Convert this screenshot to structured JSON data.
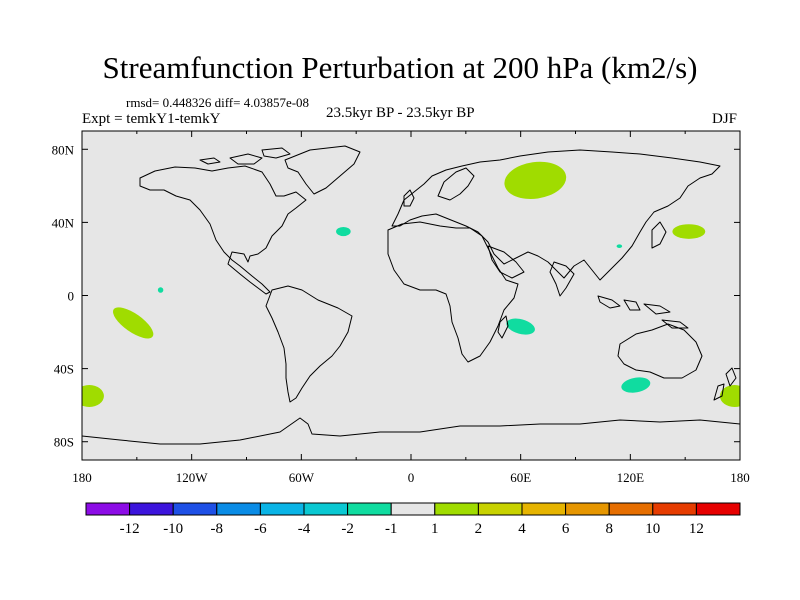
{
  "title": "Streamfunction Perturbation at 200 hPa (km2/s)",
  "stats": "rmsd= 0.448326 diff= 4.03857e-08",
  "left_label": "Expt = temkY1-temkY",
  "center_label": "23.5kyr BP - 23.5kyr BP",
  "right_label": "DJF",
  "colors": {
    "ocean": "#e6e6e6",
    "coast": "#000000",
    "pos_low": "#a0dc00",
    "neg_low": "#10dca0"
  },
  "map": {
    "lon_ticks": [
      {
        "lon": -180,
        "label": "180"
      },
      {
        "lon": -120,
        "label": "120W"
      },
      {
        "lon": -60,
        "label": "60W"
      },
      {
        "lon": 0,
        "label": "0"
      },
      {
        "lon": 60,
        "label": "60E"
      },
      {
        "lon": 120,
        "label": "120E"
      },
      {
        "lon": 180,
        "label": "180"
      }
    ],
    "lat_ticks": [
      {
        "lat": 80,
        "label": "80N"
      },
      {
        "lat": 40,
        "label": "40N"
      },
      {
        "lat": 0,
        "label": "0"
      },
      {
        "lat": -40,
        "label": "40S"
      },
      {
        "lat": -80,
        "label": "80S"
      }
    ],
    "anomalies": [
      {
        "name": "anomaly-siberia",
        "class": "1 to 2",
        "color": "#a0dc00",
        "lon": 68,
        "lat": 63,
        "rlon": 17,
        "rlat": 10,
        "rot": -8
      },
      {
        "name": "anomaly-north-pacific-west",
        "class": "1 to 2",
        "color": "#a0dc00",
        "lon": 152,
        "lat": 35,
        "rlon": 9,
        "rlat": 4,
        "rot": 0
      },
      {
        "name": "anomaly-south-pacific",
        "class": "1 to 2",
        "color": "#a0dc00",
        "lon": -152,
        "lat": -15,
        "rlon": 13,
        "rlat": 5,
        "rot": 35
      },
      {
        "name": "anomaly-southern-ocean-west",
        "class": "1 to 2",
        "color": "#a0dc00",
        "lon": -176,
        "lat": -55,
        "rlon": 8,
        "rlat": 6,
        "rot": 0
      },
      {
        "name": "anomaly-southern-ocean-east",
        "class": "1 to 2",
        "color": "#a0dc00",
        "lon": 177,
        "lat": -55,
        "rlon": 8,
        "rlat": 6,
        "rot": 0
      },
      {
        "name": "anomaly-north-atlantic",
        "class": "-1 to -2",
        "color": "#10dca0",
        "lon": -37,
        "lat": 35,
        "rlon": 4,
        "rlat": 2.5,
        "rot": 0
      },
      {
        "name": "anomaly-central-pacific",
        "class": "-1 to -2",
        "color": "#10dca0",
        "lon": -137,
        "lat": 3,
        "rlon": 1.5,
        "rlat": 1.5,
        "rot": 0
      },
      {
        "name": "anomaly-madagascar",
        "class": "-1 to -2",
        "color": "#10dca0",
        "lon": 60,
        "lat": -17,
        "rlon": 8,
        "rlat": 4,
        "rot": 15
      },
      {
        "name": "anomaly-korea",
        "class": "-1 to -2",
        "color": "#10dca0",
        "lon": 114,
        "lat": 27,
        "rlon": 1.5,
        "rlat": 1,
        "rot": 0
      },
      {
        "name": "anomaly-south-indian",
        "class": "-1 to -2",
        "color": "#10dca0",
        "lon": 123,
        "lat": -49,
        "rlon": 8,
        "rlat": 4,
        "rot": -10
      }
    ]
  },
  "colorbar": {
    "colors": [
      "#8c0ce6",
      "#3c14dc",
      "#1e50e6",
      "#0a8ce6",
      "#0ab4e6",
      "#0ac8d2",
      "#10dca0",
      "#e6e6e6",
      "#a0dc00",
      "#c8d200",
      "#e6b400",
      "#e69600",
      "#e66e00",
      "#e63c00",
      "#e60000"
    ],
    "labels": [
      "-12",
      "-10",
      "-8",
      "-6",
      "-4",
      "-2",
      "-1",
      "1",
      "2",
      "4",
      "6",
      "8",
      "10",
      "12"
    ]
  }
}
